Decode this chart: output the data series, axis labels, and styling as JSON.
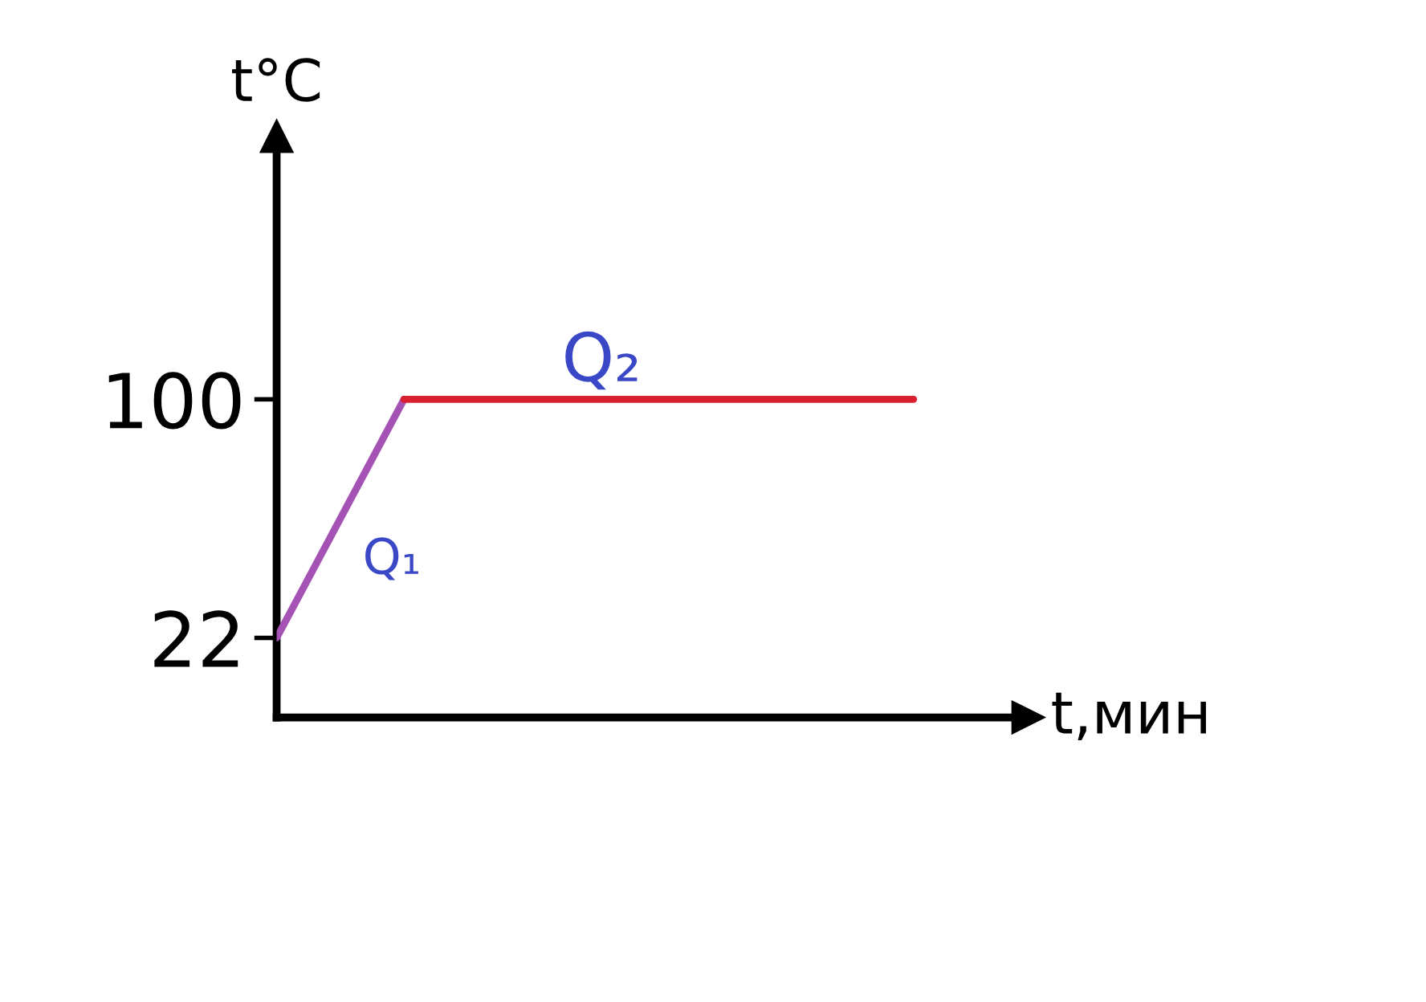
{
  "chart_data": {
    "type": "line",
    "xlabel": "t,мин",
    "ylabel": "t°C",
    "categories": [
      null,
      null,
      null,
      null,
      null,
      null
    ],
    "series": [
      {
        "name": "Q₁",
        "color": "#a452b4",
        "values": [
          22,
          100,
          null,
          null,
          null,
          null
        ]
      },
      {
        "name": "Q₂",
        "color": "#d8202e",
        "values": [
          null,
          100,
          100,
          100,
          100,
          100
        ]
      }
    ],
    "ylim": [
      -4,
      186
    ],
    "yticks": [
      22,
      100
    ],
    "tick_labels": "y",
    "grid": false,
    "legend": false,
    "marker": "none",
    "line_style": "solid"
  }
}
